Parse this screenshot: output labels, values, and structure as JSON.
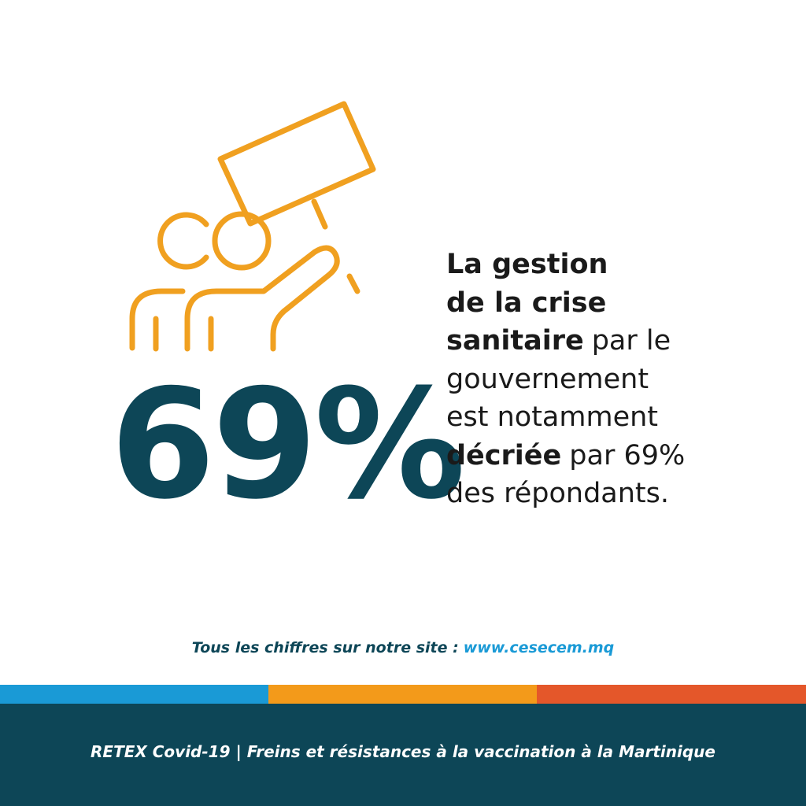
{
  "stat": {
    "value": "69%"
  },
  "statement": {
    "lines": [
      [
        {
          "text": "La gestion",
          "bold": true
        }
      ],
      [
        {
          "text": "de la crise",
          "bold": true
        }
      ],
      [
        {
          "text": "sanitaire",
          "bold": true
        },
        {
          "text": "par le",
          "bold": false
        }
      ],
      [
        {
          "text": "gouvernement",
          "bold": false
        }
      ],
      [
        {
          "text": "est notamment",
          "bold": false
        }
      ],
      [
        {
          "text": "décriée",
          "bold": true
        },
        {
          "text": "par 69%",
          "bold": false
        }
      ],
      [
        {
          "text": "des répondants.",
          "bold": false
        }
      ]
    ]
  },
  "footer": {
    "text": "Tous les chiffres sur notre site :",
    "url": "www.cesecem.mq"
  },
  "banner": {
    "text": "RETEX Covid-19 | Freins et résistances à la vaccination à la Martinique"
  }
}
